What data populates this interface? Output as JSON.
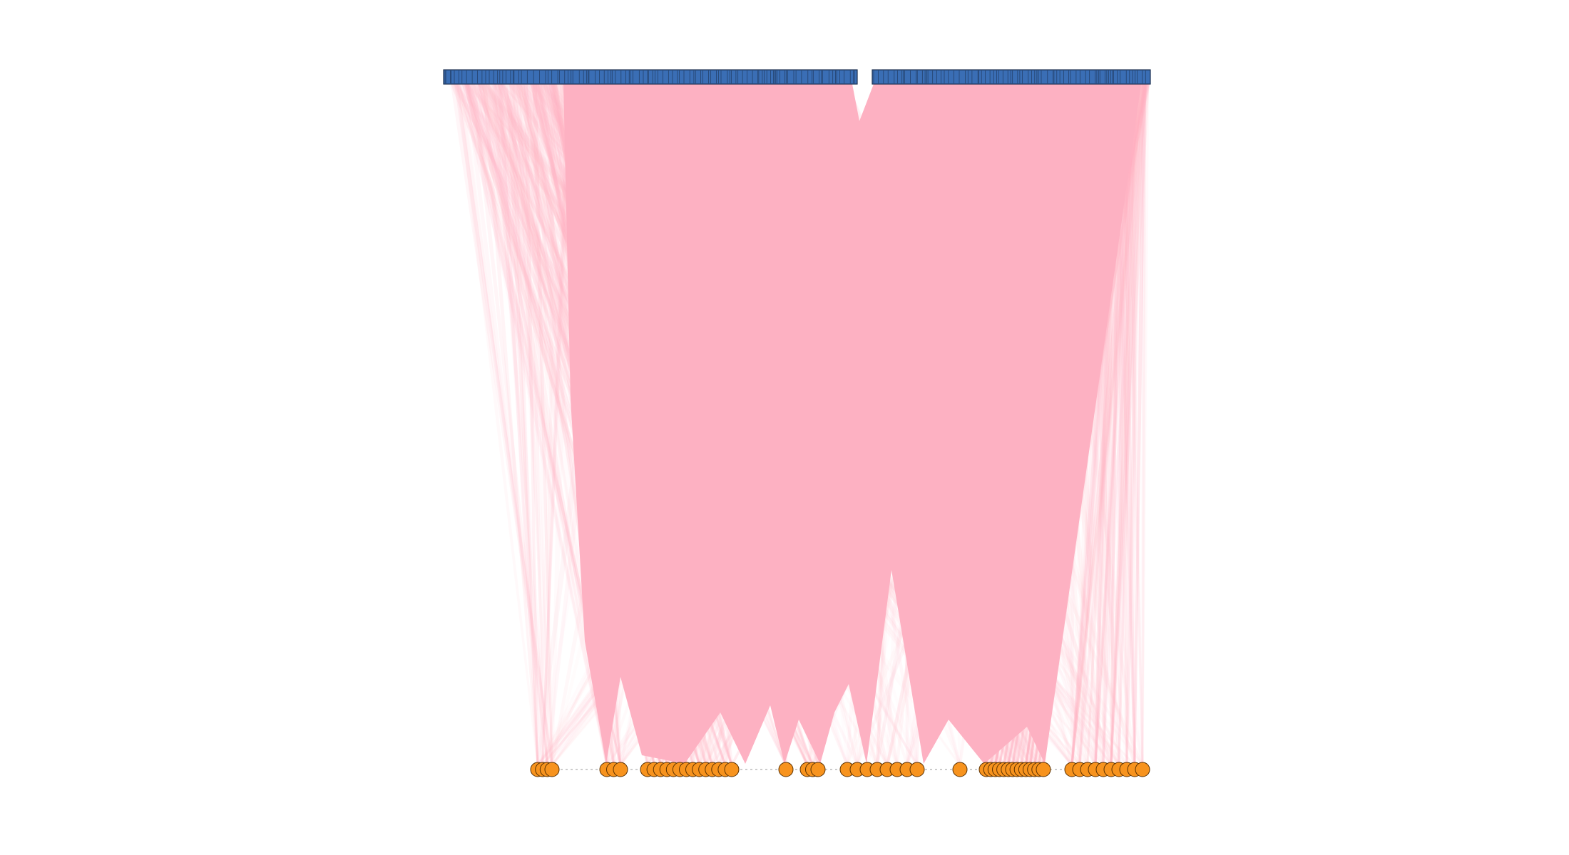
{
  "colors": {
    "background": "#ffffff",
    "ribbon": "#fdb1c2",
    "ribbon_faint": "#fcc9d4",
    "block_fill": "#3a6eb5",
    "block_stroke": "#1b2f4f",
    "node_fill": "#f7931e",
    "node_stroke": "#5a3000",
    "baseline": "#9a9a9a"
  },
  "diagram": {
    "type": "bipartite-ribbon",
    "top_blocks": [
      {
        "name": "block-left",
        "tick_count": 150
      },
      {
        "name": "block-right",
        "tick_count": 110
      }
    ],
    "bottom_nodes": [
      {
        "group": 1,
        "count": 4
      },
      {
        "group": 2,
        "count": 3
      },
      {
        "group": 3,
        "count": 14
      },
      {
        "group": 4,
        "count": 1
      },
      {
        "group": 5,
        "count": 3
      },
      {
        "group": 6,
        "count": 8
      },
      {
        "group": 7,
        "count": 1
      },
      {
        "group": 8,
        "count": 14
      },
      {
        "group": 9,
        "count": 10
      }
    ]
  }
}
